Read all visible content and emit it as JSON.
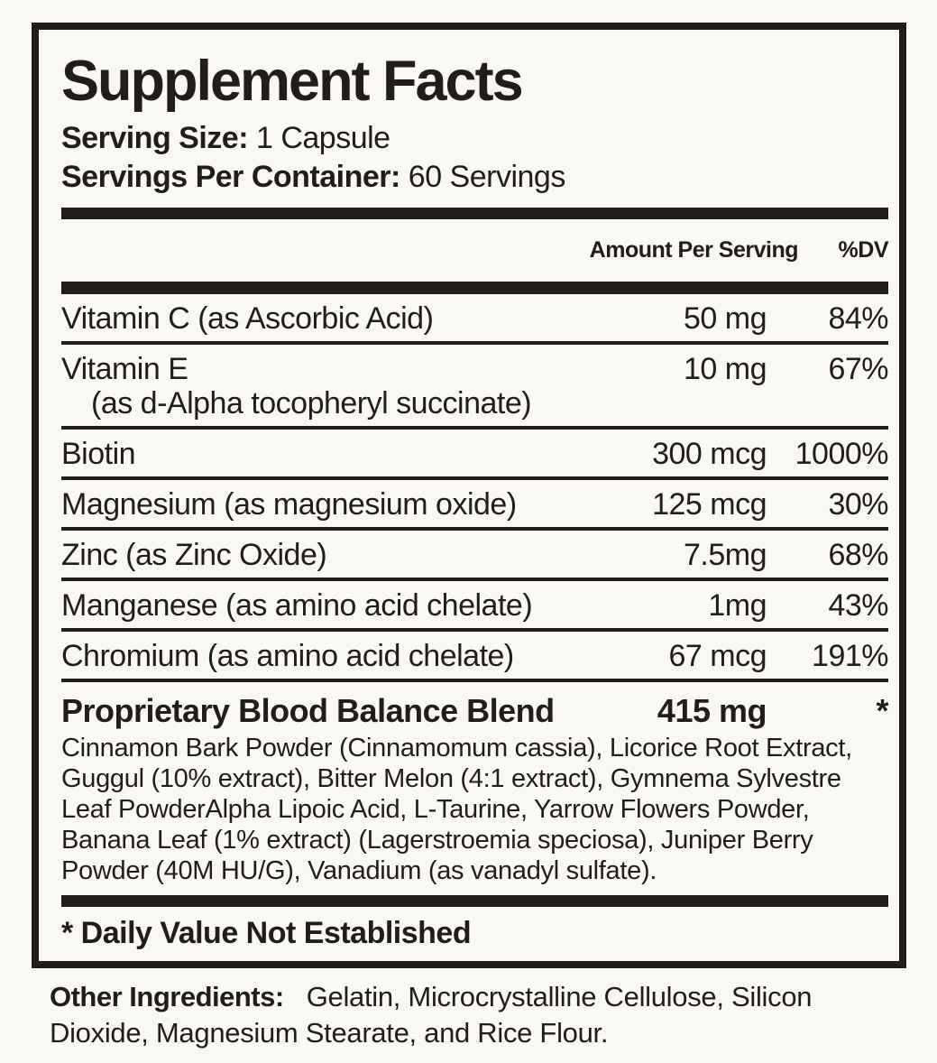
{
  "label": {
    "title": "Supplement Facts",
    "serving_size_label": "Serving Size:",
    "serving_size_value": "1 Capsule",
    "servings_per_container_label": "Servings Per Container:",
    "servings_per_container_value": "60 Servings",
    "columns": {
      "amount": "Amount Per Serving",
      "dv": "%DV"
    },
    "rows": [
      {
        "name": "Vitamin C (as Ascorbic Acid)",
        "amount": "50 mg",
        "dv": "84%"
      },
      {
        "name": "Vitamin E",
        "name_sub": "(as d-Alpha tocopheryl succinate)",
        "amount": "10 mg",
        "dv": "67%"
      },
      {
        "name": "Biotin",
        "amount": "300 mcg",
        "dv": "1000%"
      },
      {
        "name": "Magnesium (as magnesium oxide)",
        "amount": "125 mcg",
        "dv": "30%"
      },
      {
        "name": "Zinc (as Zinc Oxide)",
        "amount": "7.5mg",
        "dv": "68%"
      },
      {
        "name": "Manganese (as amino acid chelate)",
        "amount": "1mg",
        "dv": "43%"
      },
      {
        "name": "Chromium (as amino acid chelate)",
        "amount": "67 mcg",
        "dv": "191%"
      }
    ],
    "blend": {
      "name": "Proprietary Blood Balance Blend",
      "amount": "415 mg",
      "dv": "*",
      "description_lines": [
        "Cinnamon Bark Powder (Cinnamomum cassia), Licorice Root Extract,",
        "Guggul (10% extract), Bitter Melon (4:1 extract), Gymnema Sylvestre",
        "Leaf PowderAlpha Lipoic Acid, L-Taurine, Yarrow Flowers Powder,",
        "Banana Leaf (1% extract) (Lagerstroemia speciosa), Juniper Berry",
        "Powder (40M HU/G), Vanadium (as vanadyl sulfate)."
      ]
    },
    "footnote": "* Daily Value Not Established",
    "other_ingredients_label": "Other Ingredients:",
    "other_ingredients_value": "Gelatin, Microcrystalline Cellulose, Silicon Dioxide, Magnesium Stearate, and Rice Flour.",
    "colors": {
      "ink": "#211D1A",
      "background": "#FAF8F2"
    }
  }
}
